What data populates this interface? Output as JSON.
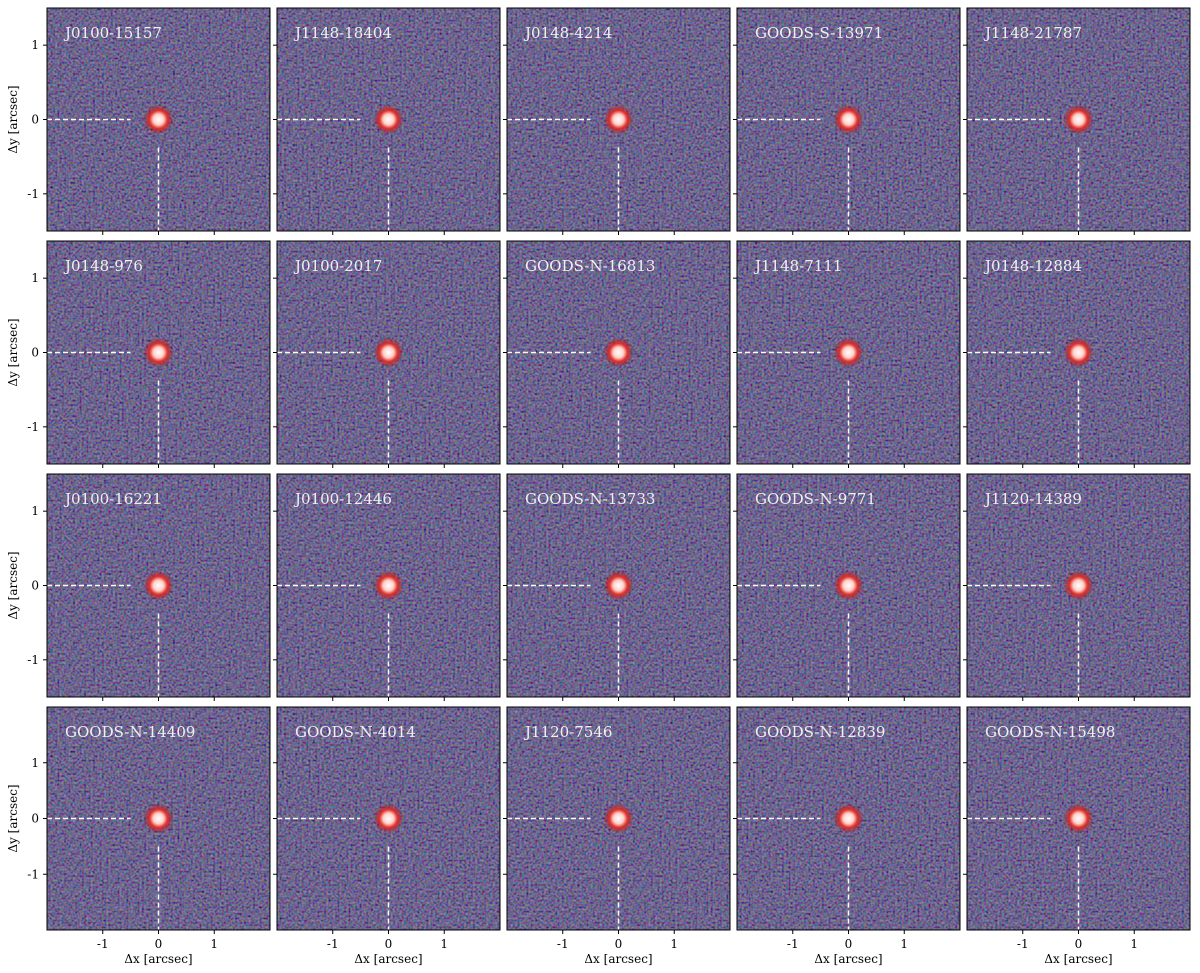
{
  "figure": {
    "xlabel": "Δx [arcsec]",
    "ylabel": "Δy [arcsec]",
    "xlim": [
      -2,
      2
    ],
    "xticks": [
      -1,
      0,
      1
    ],
    "yticks": [
      -1,
      0,
      1
    ],
    "rows": [
      {
        "ylim": [
          -1.5,
          1.5
        ],
        "panels": [
          "J0100-15157",
          "J1148-18404",
          "J0148-4214",
          "GOODS-S-13971",
          "J1148-21787"
        ]
      },
      {
        "ylim": [
          -1.5,
          1.5
        ],
        "panels": [
          "J0148-976",
          "J0100-2017",
          "GOODS-N-16813",
          "J1148-7111",
          "J0148-12884"
        ]
      },
      {
        "ylim": [
          -1.5,
          1.5
        ],
        "panels": [
          "J0100-16221",
          "J0100-12446",
          "GOODS-N-13733",
          "GOODS-N-9771",
          "J1120-14389"
        ]
      },
      {
        "ylim": [
          -2,
          2
        ],
        "panels": [
          "GOODS-N-14409",
          "GOODS-N-4014",
          "J1120-7546",
          "GOODS-N-12839",
          "GOODS-N-15498"
        ]
      }
    ]
  }
}
